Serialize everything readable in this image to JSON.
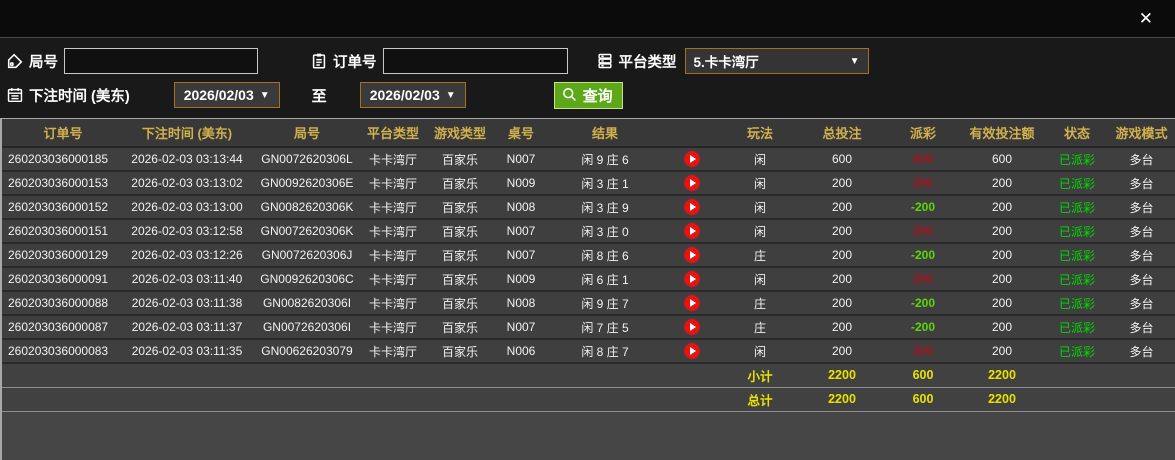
{
  "colors": {
    "page-bg": "#111111",
    "titlebar-bg": "#0b0b0b",
    "filter-bg": "#191919",
    "table-bg": "#464646",
    "header-bg": "#383838",
    "header-gold": "#d2b04e",
    "accent-border": "#a3701e",
    "query-green": "#5ca818",
    "payout-red": "#a3141f",
    "payout-green": "#5cd60a",
    "status-green": "#00dd00",
    "play-red": "#e21414",
    "summary-yellow": "#e8e400"
  },
  "titlebar": {
    "close_label": "✕"
  },
  "filters": {
    "round_label": "局号",
    "round_value": "",
    "order_label": "订单号",
    "order_value": "",
    "platform_label": "平台类型",
    "platform_value": "5.卡卡湾厅",
    "dropdown_arrow": "▼",
    "bet_time_label": "下注时间 (美东)",
    "date_from": "2026/02/03",
    "to_label": "至",
    "date_to": "2026/02/03",
    "query_label": "查询"
  },
  "table": {
    "columns": [
      {
        "key": "order",
        "label": "订单号"
      },
      {
        "key": "time",
        "label": "下注时间 (美东)"
      },
      {
        "key": "round",
        "label": "局号"
      },
      {
        "key": "platform",
        "label": "平台类型"
      },
      {
        "key": "game",
        "label": "游戏类型"
      },
      {
        "key": "tableNo",
        "label": "桌号"
      },
      {
        "key": "result",
        "label": "结果"
      },
      {
        "key": "play",
        "label": ""
      },
      {
        "key": "playType",
        "label": "玩法"
      },
      {
        "key": "totalBet",
        "label": "总投注"
      },
      {
        "key": "payout",
        "label": "派彩"
      },
      {
        "key": "validBet",
        "label": "有效投注额"
      },
      {
        "key": "status",
        "label": "状态"
      },
      {
        "key": "mode",
        "label": "游戏模式"
      }
    ],
    "rows": [
      {
        "order": "260203036000185",
        "time": "2026-02-03 03:13:44",
        "round": "GN0072620306L",
        "platform": "卡卡湾厅",
        "game": "百家乐",
        "tableNo": "N007",
        "result": "闲 9 庄 6",
        "playType": "闲",
        "totalBet": "600",
        "payout": "600",
        "validBet": "600",
        "status": "已派彩",
        "mode": "多台"
      },
      {
        "order": "260203036000153",
        "time": "2026-02-03 03:13:02",
        "round": "GN0092620306E",
        "platform": "卡卡湾厅",
        "game": "百家乐",
        "tableNo": "N009",
        "result": "闲 3 庄 1",
        "playType": "闲",
        "totalBet": "200",
        "payout": "200",
        "validBet": "200",
        "status": "已派彩",
        "mode": "多台"
      },
      {
        "order": "260203036000152",
        "time": "2026-02-03 03:13:00",
        "round": "GN0082620306K",
        "platform": "卡卡湾厅",
        "game": "百家乐",
        "tableNo": "N008",
        "result": "闲 3 庄 9",
        "playType": "闲",
        "totalBet": "200",
        "payout": "-200",
        "validBet": "200",
        "status": "已派彩",
        "mode": "多台"
      },
      {
        "order": "260203036000151",
        "time": "2026-02-03 03:12:58",
        "round": "GN0072620306K",
        "platform": "卡卡湾厅",
        "game": "百家乐",
        "tableNo": "N007",
        "result": "闲 3 庄 0",
        "playType": "闲",
        "totalBet": "200",
        "payout": "200",
        "validBet": "200",
        "status": "已派彩",
        "mode": "多台"
      },
      {
        "order": "260203036000129",
        "time": "2026-02-03 03:12:26",
        "round": "GN0072620306J",
        "platform": "卡卡湾厅",
        "game": "百家乐",
        "tableNo": "N007",
        "result": "闲 8 庄 6",
        "playType": "庄",
        "totalBet": "200",
        "payout": "-200",
        "validBet": "200",
        "status": "已派彩",
        "mode": "多台"
      },
      {
        "order": "260203036000091",
        "time": "2026-02-03 03:11:40",
        "round": "GN0092620306C",
        "platform": "卡卡湾厅",
        "game": "百家乐",
        "tableNo": "N009",
        "result": "闲 6 庄 1",
        "playType": "闲",
        "totalBet": "200",
        "payout": "200",
        "validBet": "200",
        "status": "已派彩",
        "mode": "多台"
      },
      {
        "order": "260203036000088",
        "time": "2026-02-03 03:11:38",
        "round": "GN0082620306I",
        "platform": "卡卡湾厅",
        "game": "百家乐",
        "tableNo": "N008",
        "result": "闲 9 庄 7",
        "playType": "庄",
        "totalBet": "200",
        "payout": "-200",
        "validBet": "200",
        "status": "已派彩",
        "mode": "多台"
      },
      {
        "order": "260203036000087",
        "time": "2026-02-03 03:11:37",
        "round": "GN0072620306I",
        "platform": "卡卡湾厅",
        "game": "百家乐",
        "tableNo": "N007",
        "result": "闲 7 庄 5",
        "playType": "庄",
        "totalBet": "200",
        "payout": "-200",
        "validBet": "200",
        "status": "已派彩",
        "mode": "多台"
      },
      {
        "order": "260203036000083",
        "time": "2026-02-03 03:11:35",
        "round": "GN00626203079",
        "platform": "卡卡湾厅",
        "game": "百家乐",
        "tableNo": "N006",
        "result": "闲 8 庄 7",
        "playType": "闲",
        "totalBet": "200",
        "payout": "200",
        "validBet": "200",
        "status": "已派彩",
        "mode": "多台"
      }
    ],
    "subtotal": {
      "label": "小计",
      "totalBet": "2200",
      "payout": "600",
      "validBet": "2200"
    },
    "total": {
      "label": "总计",
      "totalBet": "2200",
      "payout": "600",
      "validBet": "2200"
    }
  }
}
